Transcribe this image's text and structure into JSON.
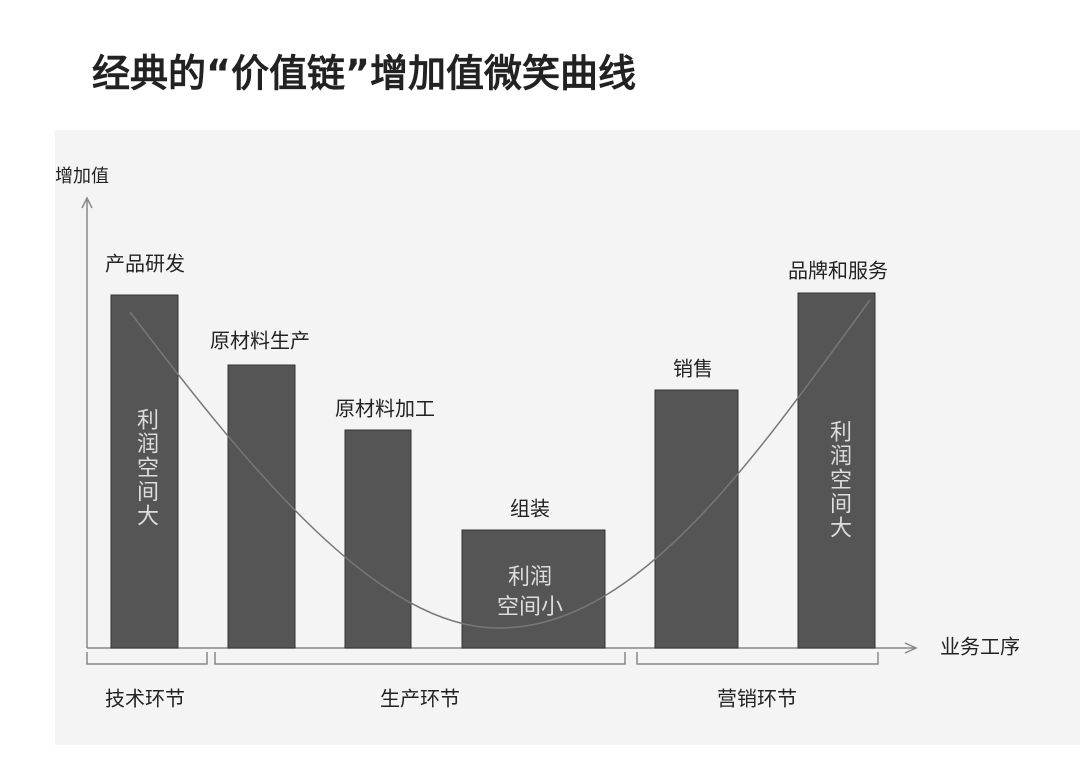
{
  "title": "经典的“价值链”增加值微笑曲线",
  "y_axis_label": "增加值",
  "x_axis_label": "业务工序",
  "stages": [
    {
      "label": "产品研发",
      "note": "利润空间大"
    },
    {
      "label": "原材料生产"
    },
    {
      "label": "原材料加工"
    },
    {
      "label": "组装",
      "note_lines": [
        "利润",
        "空间小"
      ]
    },
    {
      "label": "销售"
    },
    {
      "label": "品牌和服务",
      "note": "利润空间大"
    }
  ],
  "groups": [
    "技术环节",
    "生产环节",
    "营销环节"
  ]
}
